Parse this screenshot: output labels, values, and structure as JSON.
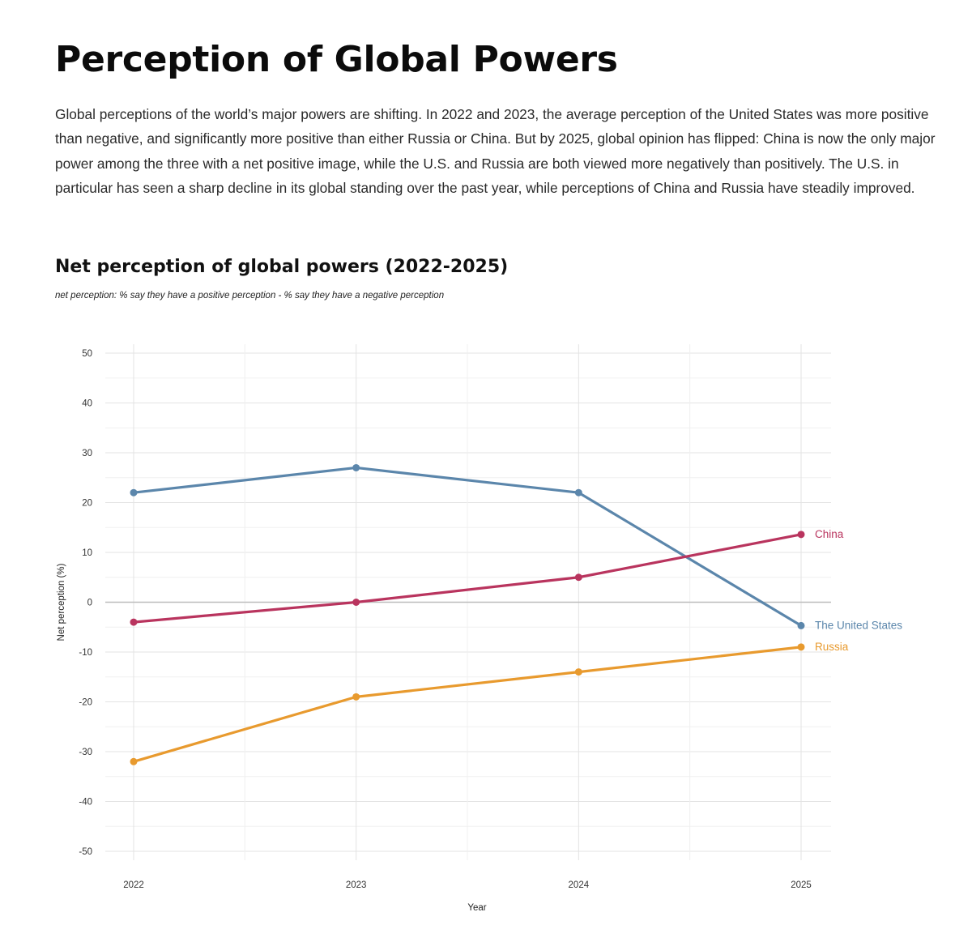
{
  "page": {
    "title": "Perception of Global Powers",
    "intro": "Global perceptions of the world’s major powers are shifting. In 2022 and 2023, the average perception of the United States was more positive than negative, and significantly more positive than either Russia or China. But by 2025, global opinion has flipped: China is now the only major power among the three with a net positive image, while the U.S. and Russia are both viewed more negatively than positively. The U.S. in particular has seen a sharp decline in its global standing over the past year, while perceptions of China and Russia have steadily improved."
  },
  "chart_data": {
    "type": "line",
    "title": "Net perception of global powers (2022-2025)",
    "subtitle": "net perception: % say they have a positive perception - % say they have a negative perception",
    "xlabel": "Year",
    "ylabel": "Net perception (%)",
    "x": [
      2022,
      2023,
      2024,
      2025
    ],
    "x_tick_labels": [
      "2022",
      "2023",
      "2024",
      "2025"
    ],
    "ylim": [
      -50,
      50
    ],
    "y_ticks": [
      50,
      40,
      30,
      20,
      10,
      0,
      -10,
      -20,
      -30,
      -40,
      -50
    ],
    "y_tick_labels": [
      "50",
      "40",
      "30",
      "20",
      "10",
      "0",
      "-10",
      "-20",
      "-30",
      "-40",
      "-50"
    ],
    "grid": true,
    "zero_line": true,
    "legend": "direct labels at line ends",
    "series": [
      {
        "name": "The United States",
        "color": "#5b86ab",
        "values": [
          22,
          27,
          22,
          -4.7
        ]
      },
      {
        "name": "China",
        "color": "#b9345e",
        "values": [
          -4,
          0,
          5,
          13.6
        ]
      },
      {
        "name": "Russia",
        "color": "#e89a2e",
        "values": [
          -32,
          -19,
          -14,
          -9
        ]
      }
    ]
  }
}
